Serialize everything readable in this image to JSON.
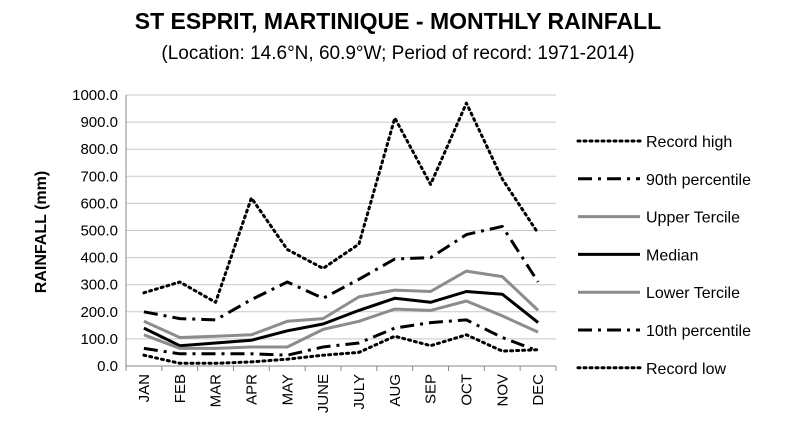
{
  "chart_data": {
    "type": "line",
    "title": "ST ESPRIT, MARTINIQUE - MONTHLY RAINFALL",
    "subtitle": "(Location: 14.6°N, 60.9°W; Period of record: 1971-2014)",
    "ylabel": "RAINFALL (mm)",
    "xlabel": "",
    "ylim": [
      0,
      1000
    ],
    "ytick_step": 100,
    "ytick_labels": [
      "0.0",
      "100.0",
      "200.0",
      "300.0",
      "400.0",
      "500.0",
      "600.0",
      "700.0",
      "800.0",
      "900.0",
      "1000.0"
    ],
    "grid": true,
    "legend_position": "right",
    "categories": [
      "JAN",
      "FEB",
      "MAR",
      "APR",
      "MAY",
      "JUNE",
      "JULY",
      "AUG",
      "SEP",
      "OCT",
      "NOV",
      "DEC"
    ],
    "series": [
      {
        "name": "Record high",
        "style": "dotted",
        "color": "#000000",
        "width": 3,
        "values": [
          270,
          310,
          235,
          620,
          430,
          360,
          450,
          915,
          670,
          970,
          690,
          490
        ]
      },
      {
        "name": "90th percentile",
        "style": "dashdot",
        "color": "#000000",
        "width": 3,
        "values": [
          200,
          175,
          170,
          245,
          310,
          250,
          320,
          395,
          400,
          485,
          515,
          310
        ]
      },
      {
        "name": "Upper Tercile",
        "style": "solid",
        "color": "#8c8c8c",
        "width": 3,
        "values": [
          165,
          105,
          110,
          115,
          165,
          175,
          255,
          280,
          275,
          350,
          330,
          205
        ]
      },
      {
        "name": "Median",
        "style": "solid",
        "color": "#000000",
        "width": 3,
        "values": [
          140,
          75,
          85,
          95,
          130,
          155,
          205,
          250,
          235,
          275,
          265,
          160
        ]
      },
      {
        "name": "Lower Tercile",
        "style": "solid",
        "color": "#8c8c8c",
        "width": 3,
        "values": [
          115,
          65,
          65,
          70,
          70,
          135,
          165,
          210,
          205,
          240,
          185,
          125
        ]
      },
      {
        "name": "10th percentile",
        "style": "dashdot",
        "color": "#000000",
        "width": 3,
        "values": [
          65,
          45,
          45,
          45,
          40,
          70,
          85,
          140,
          160,
          170,
          105,
          55
        ]
      },
      {
        "name": "Record low",
        "style": "dotted",
        "color": "#000000",
        "width": 3,
        "values": [
          40,
          10,
          10,
          15,
          25,
          40,
          50,
          110,
          75,
          115,
          55,
          60
        ]
      }
    ]
  }
}
